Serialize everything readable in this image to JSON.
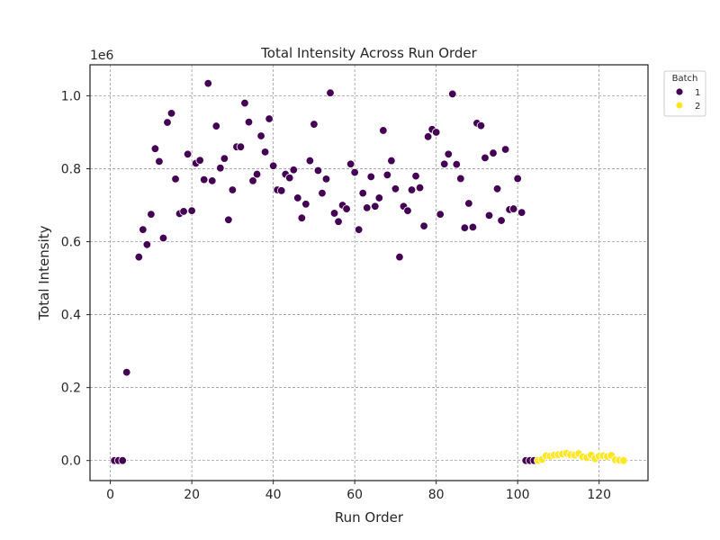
{
  "chart_data": {
    "type": "scatter",
    "title": "Total Intensity Across Run Order",
    "xlabel": "Run Order",
    "ylabel": "Total Intensity",
    "y_offset_label": "1e6",
    "xlim": [
      -5,
      132
    ],
    "ylim": [
      -0.055,
      1.085
    ],
    "xticks": [
      0,
      20,
      40,
      60,
      80,
      100,
      120
    ],
    "yticks": [
      0.0,
      0.2,
      0.4,
      0.6,
      0.8,
      1.0
    ],
    "ytick_labels": [
      "0.0",
      "0.2",
      "0.4",
      "0.6",
      "0.8",
      "1.0"
    ],
    "grid": true,
    "legend": {
      "title": "Batch",
      "placement": "outside-top-right"
    },
    "series": [
      {
        "name": "1",
        "color": "#440154",
        "x": [
          1,
          2,
          3,
          4,
          7,
          8,
          9,
          10,
          11,
          12,
          13,
          14,
          15,
          16,
          17,
          18,
          19,
          20,
          21,
          22,
          23,
          24,
          25,
          26,
          27,
          28,
          29,
          30,
          31,
          32,
          33,
          34,
          35,
          36,
          37,
          38,
          39,
          40,
          41,
          42,
          43,
          44,
          45,
          46,
          47,
          48,
          49,
          50,
          51,
          52,
          53,
          54,
          55,
          56,
          57,
          58,
          59,
          60,
          61,
          62,
          63,
          64,
          65,
          66,
          67,
          68,
          69,
          70,
          71,
          72,
          73,
          74,
          75,
          76,
          77,
          78,
          79,
          80,
          81,
          82,
          83,
          84,
          85,
          86,
          87,
          88,
          89,
          90,
          91,
          92,
          93,
          94,
          95,
          96,
          97,
          98,
          99,
          100,
          101,
          102,
          103,
          104
        ],
        "y": [
          0.0,
          0.0,
          0.0,
          0.242,
          0.558,
          0.633,
          0.592,
          0.675,
          0.855,
          0.82,
          0.61,
          0.927,
          0.952,
          0.772,
          0.677,
          0.683,
          0.84,
          0.685,
          0.815,
          0.823,
          0.77,
          1.034,
          0.767,
          0.917,
          0.802,
          0.828,
          0.66,
          0.742,
          0.86,
          0.86,
          0.98,
          0.928,
          0.767,
          0.785,
          0.89,
          0.846,
          0.937,
          0.808,
          0.742,
          0.74,
          0.785,
          0.775,
          0.797,
          0.72,
          0.665,
          0.703,
          0.822,
          0.922,
          0.795,
          0.733,
          0.772,
          1.008,
          0.678,
          0.655,
          0.7,
          0.69,
          0.813,
          0.79,
          0.633,
          0.733,
          0.693,
          0.778,
          0.697,
          0.72,
          0.905,
          0.783,
          0.822,
          0.745,
          0.558,
          0.697,
          0.685,
          0.742,
          0.78,
          0.748,
          0.643,
          0.888,
          0.908,
          0.9,
          0.675,
          0.813,
          0.84,
          1.005,
          0.812,
          0.773,
          0.638,
          0.705,
          0.64,
          0.925,
          0.918,
          0.83,
          0.672,
          0.843,
          0.745,
          0.658,
          0.853,
          0.688,
          0.69,
          0.773,
          0.68,
          0.0,
          0.0,
          0.0
        ]
      },
      {
        "name": "2",
        "color": "#fde725",
        "x": [
          105,
          106,
          107,
          108,
          109,
          110,
          111,
          112,
          113,
          114,
          115,
          116,
          117,
          118,
          119,
          120,
          121,
          122,
          123,
          124,
          125,
          126
        ],
        "y": [
          0.0,
          0.003,
          0.013,
          0.012,
          0.015,
          0.016,
          0.018,
          0.02,
          0.016,
          0.015,
          0.019,
          0.01,
          0.008,
          0.015,
          0.005,
          0.012,
          0.013,
          0.011,
          0.014,
          0.002,
          0.001,
          0.0
        ]
      }
    ]
  }
}
